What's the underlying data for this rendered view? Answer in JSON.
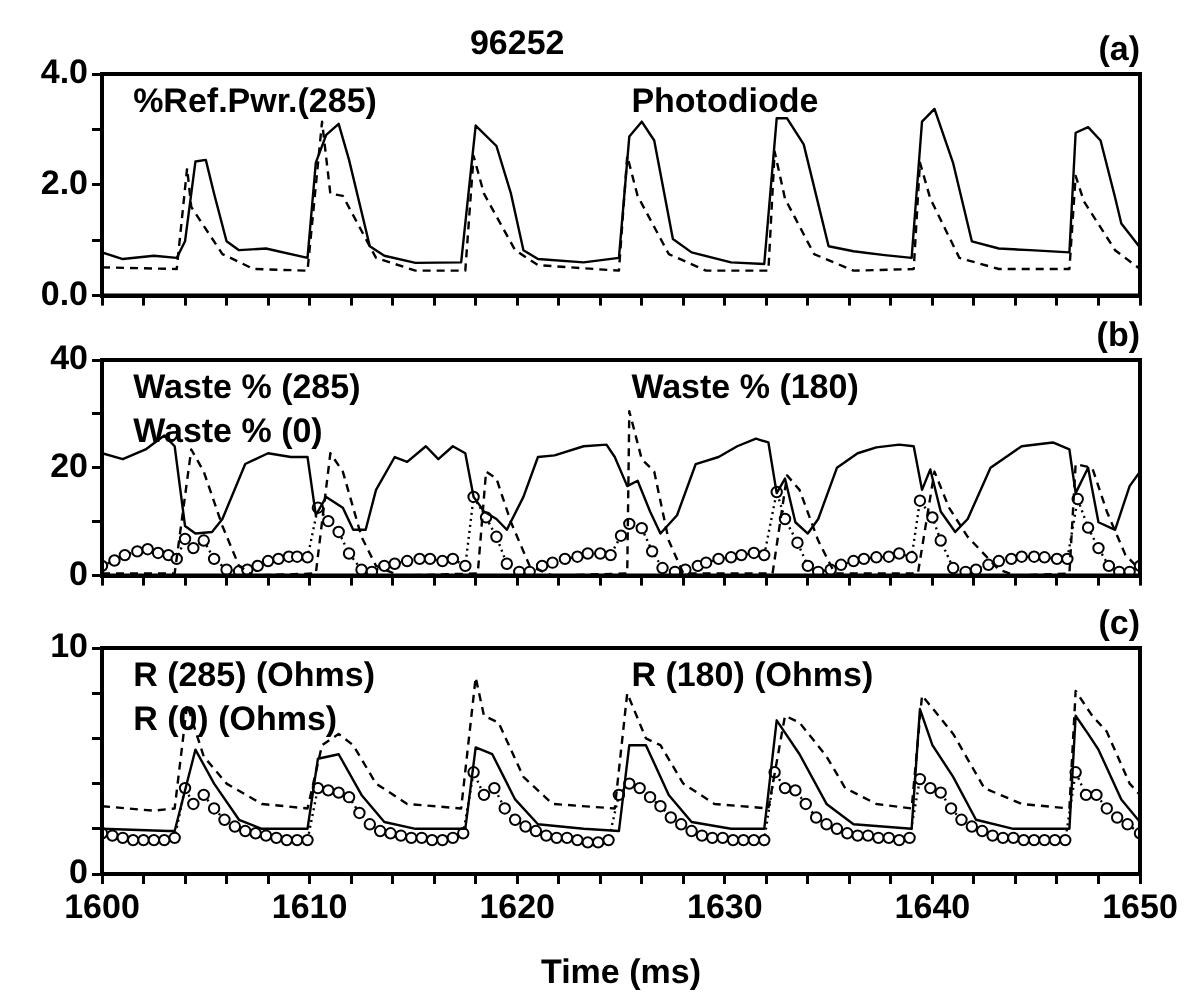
{
  "chart_data": [
    {
      "type": "line",
      "title": "96252",
      "annotations": [
        "(a)",
        "%Ref.Pwr.(285)",
        "Photodiode"
      ],
      "tick_labels": "y",
      "xlim": [
        1600,
        1650
      ],
      "xticks": [
        1600,
        {
          "value": 1602,
          "label": null
        },
        {
          "value": 1604,
          "label": null
        },
        {
          "value": 1606,
          "label": null
        },
        {
          "value": 1608,
          "label": null
        },
        1610,
        {
          "value": 1612,
          "label": null
        },
        {
          "value": 1614,
          "label": null
        },
        {
          "value": 1616,
          "label": null
        },
        {
          "value": 1618,
          "label": null
        },
        1620,
        {
          "value": 1622,
          "label": null
        },
        {
          "value": 1624,
          "label": null
        },
        {
          "value": 1626,
          "label": null
        },
        {
          "value": 1628,
          "label": null
        },
        1630,
        {
          "value": 1632,
          "label": null
        },
        {
          "value": 1634,
          "label": null
        },
        {
          "value": 1636,
          "label": null
        },
        {
          "value": 1638,
          "label": null
        },
        1640,
        {
          "value": 1642,
          "label": null
        },
        {
          "value": 1644,
          "label": null
        },
        {
          "value": 1646,
          "label": null
        },
        {
          "value": 1648,
          "label": null
        },
        1650
      ],
      "ylim": [
        0,
        4
      ],
      "yticks": [
        {
          "value": 0,
          "label": "0.0"
        },
        {
          "value": 1,
          "label": null
        },
        {
          "value": 2,
          "label": "2.0"
        },
        {
          "value": 3,
          "label": null
        },
        {
          "value": 4,
          "label": "4.0"
        }
      ],
      "series": [
        {
          "color": "#000000",
          "line_style": "solid",
          "marker": "none",
          "x": [
            1600,
            1601,
            1602.5,
            1603.6,
            1604,
            1604.5,
            1605,
            1605.4,
            1606,
            1606.6,
            1607.9,
            1609.9,
            1610.3,
            1610.8,
            1611.4,
            1611.9,
            1612.9,
            1613.6,
            1615.1,
            1617.3,
            1618,
            1619,
            1619.7,
            1620.3,
            1621,
            1623.2,
            1624.9,
            1625.4,
            1626,
            1626.6,
            1627.5,
            1628.4,
            1630.3,
            1631.9,
            1632.5,
            1633,
            1633.8,
            1635,
            1636.2,
            1637.7,
            1639,
            1639.5,
            1640.1,
            1641,
            1641.9,
            1643.2,
            1644.7,
            1646.6,
            1646.9,
            1647.5,
            1648.1,
            1648.8,
            1649.1,
            1650
          ],
          "values": [
            0.78,
            0.66,
            0.72,
            0.68,
            0.98,
            2.42,
            2.45,
            1.84,
            0.98,
            0.82,
            0.85,
            0.68,
            2.4,
            2.9,
            3.1,
            2.45,
            0.89,
            0.72,
            0.59,
            0.6,
            3.07,
            2.7,
            1.84,
            0.82,
            0.66,
            0.6,
            0.68,
            2.87,
            3.14,
            2.8,
            1.02,
            0.78,
            0.6,
            0.57,
            3.2,
            3.2,
            2.73,
            0.89,
            0.8,
            0.73,
            0.68,
            3.14,
            3.37,
            2.39,
            0.98,
            0.85,
            0.82,
            0.78,
            2.94,
            3.04,
            2.8,
            1.77,
            1.3,
            0.87
          ]
        },
        {
          "color": "#000000",
          "line_style": "dashed",
          "marker": "none",
          "x": [
            1600,
            1603.6,
            1604.1,
            1604.3,
            1605.8,
            1607.3,
            1609.9,
            1610.6,
            1611,
            1611.6,
            1613.2,
            1615.1,
            1617.5,
            1617.9,
            1618.4,
            1619.9,
            1621,
            1624.9,
            1625.3,
            1625.8,
            1627.3,
            1629.1,
            1632.1,
            1632.4,
            1632.9,
            1634.3,
            1636.2,
            1639.1,
            1639.4,
            1639.9,
            1641.3,
            1643.2,
            1646.6,
            1646.9,
            1647.3,
            1648.8,
            1650
          ],
          "values": [
            0.51,
            0.48,
            2.3,
            1.6,
            0.75,
            0.48,
            0.45,
            3.14,
            1.84,
            1.8,
            0.68,
            0.45,
            0.45,
            2.52,
            1.84,
            0.82,
            0.55,
            0.45,
            2.52,
            1.8,
            0.75,
            0.45,
            0.45,
            2.6,
            1.75,
            0.75,
            0.45,
            0.48,
            2.4,
            1.75,
            0.68,
            0.48,
            0.48,
            2.16,
            1.7,
            0.82,
            0.48
          ]
        }
      ]
    },
    {
      "type": "line",
      "annotations": [
        "(b)",
        "Waste % (285)",
        "Waste % (180)",
        "Waste % (0)"
      ],
      "tick_labels": "y",
      "xlim": [
        1600,
        1650
      ],
      "xticks": [
        1600,
        {
          "value": 1602,
          "label": null
        },
        {
          "value": 1604,
          "label": null
        },
        {
          "value": 1606,
          "label": null
        },
        {
          "value": 1608,
          "label": null
        },
        1610,
        {
          "value": 1612,
          "label": null
        },
        {
          "value": 1614,
          "label": null
        },
        {
          "value": 1616,
          "label": null
        },
        {
          "value": 1618,
          "label": null
        },
        1620,
        {
          "value": 1622,
          "label": null
        },
        {
          "value": 1624,
          "label": null
        },
        {
          "value": 1626,
          "label": null
        },
        {
          "value": 1628,
          "label": null
        },
        1630,
        {
          "value": 1632,
          "label": null
        },
        {
          "value": 1634,
          "label": null
        },
        {
          "value": 1636,
          "label": null
        },
        {
          "value": 1638,
          "label": null
        },
        1640,
        {
          "value": 1642,
          "label": null
        },
        {
          "value": 1644,
          "label": null
        },
        {
          "value": 1646,
          "label": null
        },
        {
          "value": 1648,
          "label": null
        },
        1650
      ],
      "ylim": [
        0,
        40
      ],
      "yticks": [
        0,
        {
          "value": 10,
          "label": null
        },
        20,
        {
          "value": 30,
          "label": null
        },
        40
      ],
      "series": [
        {
          "color": "#000000",
          "line_style": "solid",
          "marker": "none",
          "x": [
            1600,
            1601,
            1602.1,
            1603,
            1603.5,
            1604,
            1604.5,
            1605.3,
            1605.8,
            1606.9,
            1608,
            1609.1,
            1609.9,
            1610.3,
            1610.8,
            1611.6,
            1612.1,
            1612.7,
            1613.2,
            1614.1,
            1614.7,
            1615.6,
            1616.2,
            1616.9,
            1617.5,
            1617.9,
            1618.4,
            1619,
            1619.5,
            1620.3,
            1621,
            1621.8,
            1623.2,
            1624.3,
            1624.7,
            1625.3,
            1625.8,
            1626.4,
            1626.9,
            1627.7,
            1628.6,
            1629.7,
            1630.6,
            1631.5,
            1632.1,
            1632.5,
            1632.9,
            1633.4,
            1634,
            1634.5,
            1635.4,
            1636.4,
            1637.3,
            1638.4,
            1639.1,
            1639.5,
            1639.9,
            1640.4,
            1641.1,
            1641.7,
            1642.8,
            1644.3,
            1645.8,
            1646.6,
            1646.9,
            1647.5,
            1648,
            1648.8,
            1649.5,
            1650
          ],
          "values": [
            22.7,
            21.6,
            23.4,
            26,
            24,
            9.2,
            7.8,
            8.1,
            10.5,
            20.7,
            22.7,
            22,
            22,
            11.2,
            14.6,
            12.6,
            8.5,
            8.5,
            15.9,
            22,
            21.1,
            24,
            21.6,
            24,
            22.7,
            14.6,
            11.9,
            10.5,
            8.5,
            14.6,
            22,
            22.3,
            24,
            24.3,
            22,
            16.6,
            17.6,
            11.9,
            7.8,
            11.2,
            20.7,
            22,
            24,
            25.4,
            24.7,
            15.3,
            18,
            9.9,
            7.8,
            10.5,
            20,
            22.7,
            23.8,
            24.3,
            24,
            15.9,
            19.7,
            11.9,
            8.1,
            10.5,
            20,
            24,
            24.7,
            23.4,
            15.3,
            20,
            9.9,
            8.5,
            16.6,
            19.3
          ]
        },
        {
          "color": "#000000",
          "line_style": "dashed",
          "marker": "none",
          "x": [
            1600,
            1603.5,
            1604.3,
            1604.9,
            1605.8,
            1606.6,
            1607.3,
            1610.3,
            1611,
            1611.6,
            1612.5,
            1613.2,
            1614.3,
            1618.1,
            1618.5,
            1619,
            1619.7,
            1620.6,
            1621.7,
            1625.3,
            1625.4,
            1626,
            1626.6,
            1627.3,
            1628,
            1632.3,
            1633,
            1633.6,
            1634.5,
            1635.3,
            1639.3,
            1640.1,
            1640.8,
            1641.7,
            1643.2,
            1644,
            1646.6,
            1646.9,
            1647.7,
            1648.4,
            1649.3,
            1650
          ],
          "values": [
            0.4,
            0.4,
            23.4,
            19.3,
            9.2,
            1.8,
            0,
            0.4,
            22.7,
            19.3,
            7.2,
            1.8,
            0,
            0.4,
            19.3,
            18,
            9.9,
            1.8,
            0,
            0.4,
            30.5,
            21.6,
            19.3,
            6.5,
            0.4,
            0.4,
            18.6,
            15.9,
            6.5,
            0.4,
            0.4,
            19.3,
            12.6,
            7.2,
            1.1,
            0,
            0.4,
            20.7,
            20,
            11.9,
            3.8,
            1.1
          ]
        },
        {
          "color": "#000000",
          "line_style": "dotted",
          "marker": "circle",
          "x": [
            1600,
            1600.6,
            1601.1,
            1601.7,
            1602.2,
            1602.7,
            1603.2,
            1603.6,
            1604,
            1604.4,
            1604.9,
            1605.4,
            1606,
            1606.6,
            1607,
            1607.5,
            1608,
            1608.5,
            1609,
            1609.4,
            1609.9,
            1610.4,
            1610.9,
            1611.4,
            1611.9,
            1612.5,
            1613,
            1613.6,
            1614.1,
            1614.7,
            1615.3,
            1615.8,
            1616.4,
            1616.9,
            1617.5,
            1617.9,
            1618.5,
            1619,
            1619.5,
            1620.1,
            1620.6,
            1621.2,
            1621.7,
            1622.3,
            1622.9,
            1623.4,
            1624,
            1624.5,
            1625,
            1625.4,
            1626,
            1626.5,
            1627,
            1627.6,
            1628.1,
            1628.7,
            1629.1,
            1629.7,
            1630.3,
            1630.8,
            1631.4,
            1631.9,
            1632.5,
            1632.9,
            1633.5,
            1634,
            1634.5,
            1635.1,
            1635.6,
            1636.2,
            1636.7,
            1637.3,
            1637.9,
            1638.4,
            1639,
            1639.4,
            1640,
            1640.4,
            1641,
            1641.6,
            1642.1,
            1642.7,
            1643.2,
            1643.8,
            1644.3,
            1644.9,
            1645.4,
            1646,
            1646.5,
            1647,
            1647.5,
            1648,
            1648.5,
            1649,
            1649.5,
            1650
          ],
          "values": [
            1.8,
            2.8,
            3.8,
            4.5,
            4.9,
            4.2,
            3.8,
            3.1,
            6.8,
            5.1,
            6.5,
            3.1,
            1.1,
            0.8,
            1.1,
            1.8,
            2.7,
            3.1,
            3.5,
            3.5,
            3.4,
            12.6,
            10.1,
            8.1,
            4.1,
            1.1,
            0.7,
            1.8,
            2.2,
            2.7,
            3.1,
            3.1,
            2.7,
            3.1,
            1.8,
            14.6,
            10.8,
            7.2,
            2.2,
            0.7,
            0.7,
            1.8,
            2.4,
            3.1,
            3.5,
            4.1,
            4.1,
            3.8,
            7.4,
            9.6,
            8.8,
            4.5,
            1.4,
            0.7,
            1.1,
            1.8,
            2.4,
            3.1,
            3.4,
            3.8,
            4.2,
            3.8,
            15.5,
            10.5,
            6.1,
            1.8,
            0.7,
            1.1,
            2,
            2.7,
            3.1,
            3.4,
            3.5,
            4.1,
            3.4,
            13.9,
            10.8,
            6.5,
            1.4,
            0.7,
            1.1,
            2,
            2.7,
            3.1,
            3.5,
            3.5,
            3.4,
            3.1,
            3.1,
            14.2,
            8.9,
            5.1,
            1.8,
            0.7,
            0.7,
            1.8
          ]
        }
      ]
    },
    {
      "type": "line",
      "annotations": [
        "(c)",
        "R (285) (Ohms)",
        "R (180) (Ohms)",
        "R (0) (Ohms)"
      ],
      "xlabel": "Time (ms)",
      "xlim": [
        1600,
        1650
      ],
      "xticks": [
        1600,
        {
          "value": 1602,
          "label": null
        },
        {
          "value": 1604,
          "label": null
        },
        {
          "value": 1606,
          "label": null
        },
        {
          "value": 1608,
          "label": null
        },
        1610,
        {
          "value": 1612,
          "label": null
        },
        {
          "value": 1614,
          "label": null
        },
        {
          "value": 1616,
          "label": null
        },
        {
          "value": 1618,
          "label": null
        },
        1620,
        {
          "value": 1622,
          "label": null
        },
        {
          "value": 1624,
          "label": null
        },
        {
          "value": 1626,
          "label": null
        },
        {
          "value": 1628,
          "label": null
        },
        1630,
        {
          "value": 1632,
          "label": null
        },
        {
          "value": 1634,
          "label": null
        },
        {
          "value": 1636,
          "label": null
        },
        {
          "value": 1638,
          "label": null
        },
        1640,
        {
          "value": 1642,
          "label": null
        },
        {
          "value": 1644,
          "label": null
        },
        {
          "value": 1646,
          "label": null
        },
        {
          "value": 1648,
          "label": null
        },
        1650
      ],
      "ylim": [
        0,
        10
      ],
      "yticks": [
        0,
        {
          "value": 2,
          "label": null
        },
        {
          "value": 4,
          "label": null
        },
        {
          "value": 6,
          "label": null
        },
        {
          "value": 8,
          "label": null
        },
        10
      ],
      "series": [
        {
          "color": "#000000",
          "line_style": "solid",
          "marker": "none",
          "x": [
            1600,
            1603.2,
            1603.5,
            1604.5,
            1605.4,
            1606.6,
            1607.7,
            1609.9,
            1610.4,
            1611.4,
            1612.5,
            1613.6,
            1615.1,
            1617.5,
            1618,
            1618.8,
            1619.9,
            1621,
            1623.2,
            1624.9,
            1625.4,
            1626.2,
            1627.3,
            1628.4,
            1630.3,
            1631.9,
            1632.5,
            1633.6,
            1634.9,
            1636.2,
            1639,
            1639.4,
            1640,
            1641,
            1642.1,
            1643.9,
            1646.6,
            1646.9,
            1647.5,
            1648,
            1649.1,
            1650
          ],
          "values": [
            2,
            1.9,
            1.9,
            5.5,
            4,
            2.4,
            2,
            2,
            5.1,
            5.3,
            3.5,
            2.3,
            2,
            2,
            5.6,
            5.3,
            3.3,
            2.2,
            2,
            1.9,
            5.7,
            5.7,
            3.5,
            2.3,
            2,
            2,
            6.8,
            5.3,
            3.1,
            2.2,
            2,
            7.3,
            5.7,
            4.3,
            2.4,
            2,
            2,
            7,
            6.2,
            5.5,
            3.3,
            2.3
          ]
        },
        {
          "color": "#000000",
          "line_style": "dashed",
          "marker": "none",
          "x": [
            1600,
            1602.5,
            1603.5,
            1604.1,
            1604.9,
            1606,
            1607.7,
            1609.9,
            1610.6,
            1611.4,
            1612.1,
            1613.2,
            1614.7,
            1617.3,
            1618,
            1618.4,
            1619.1,
            1620.3,
            1621.7,
            1624.7,
            1625.3,
            1626.2,
            1626.9,
            1628,
            1629.5,
            1632.1,
            1632.9,
            1633.6,
            1634.9,
            1635.8,
            1637.3,
            1639,
            1639.5,
            1640.3,
            1641,
            1642.5,
            1644.3,
            1646.6,
            1646.9,
            1647.7,
            1648.4,
            1649.5,
            1650
          ],
          "values": [
            3,
            2.8,
            2.9,
            7.5,
            5.2,
            4,
            3.1,
            2.9,
            5.7,
            6.2,
            5.7,
            4,
            3.1,
            2.9,
            8.7,
            7,
            6.7,
            4.3,
            3.1,
            2.9,
            8,
            6,
            5.7,
            4,
            3.1,
            2.9,
            7,
            6.7,
            5.2,
            3.8,
            3.1,
            2.9,
            7.9,
            7,
            6.2,
            3.8,
            3.1,
            2.9,
            8.1,
            7,
            6.3,
            4,
            3.5
          ]
        },
        {
          "color": "#000000",
          "line_style": "dotted",
          "marker": "circle",
          "x": [
            1600,
            1600.5,
            1601,
            1601.5,
            1602,
            1602.5,
            1603,
            1603.5,
            1604,
            1604.4,
            1604.9,
            1605.4,
            1605.9,
            1606.4,
            1606.9,
            1607.4,
            1607.9,
            1608.4,
            1608.9,
            1609.4,
            1609.9,
            1610.4,
            1610.9,
            1611.4,
            1611.9,
            1612.4,
            1612.9,
            1613.4,
            1613.9,
            1614.4,
            1614.9,
            1615.4,
            1615.9,
            1616.4,
            1616.9,
            1617.4,
            1617.9,
            1618.4,
            1618.9,
            1619.4,
            1619.9,
            1620.4,
            1620.9,
            1621.4,
            1621.9,
            1622.4,
            1622.9,
            1623.4,
            1623.9,
            1624.4,
            1624.9,
            1625.4,
            1625.9,
            1626.4,
            1626.9,
            1627.4,
            1627.9,
            1628.4,
            1628.9,
            1629.4,
            1629.9,
            1630.4,
            1630.9,
            1631.4,
            1631.9,
            1632.4,
            1632.9,
            1633.4,
            1633.9,
            1634.4,
            1634.9,
            1635.4,
            1635.9,
            1636.4,
            1636.9,
            1637.4,
            1637.9,
            1638.4,
            1638.9,
            1639.4,
            1639.9,
            1640.4,
            1640.9,
            1641.4,
            1641.9,
            1642.4,
            1642.9,
            1643.4,
            1643.9,
            1644.4,
            1644.9,
            1645.4,
            1645.9,
            1646.4,
            1646.9,
            1647.4,
            1647.9,
            1648.4,
            1648.9,
            1649.4,
            1650
          ],
          "values": [
            1.8,
            1.7,
            1.6,
            1.5,
            1.5,
            1.5,
            1.5,
            1.6,
            3.8,
            3.1,
            3.5,
            2.9,
            2.4,
            2.1,
            1.9,
            1.8,
            1.7,
            1.6,
            1.5,
            1.5,
            1.5,
            3.8,
            3.7,
            3.6,
            3.4,
            2.7,
            2.2,
            1.9,
            1.8,
            1.7,
            1.6,
            1.6,
            1.5,
            1.5,
            1.6,
            1.8,
            4.5,
            3.5,
            3.8,
            2.9,
            2.4,
            2.1,
            1.9,
            1.7,
            1.6,
            1.6,
            1.5,
            1.4,
            1.4,
            1.5,
            3.5,
            4,
            3.8,
            3.4,
            3,
            2.5,
            2.2,
            1.9,
            1.7,
            1.6,
            1.6,
            1.5,
            1.5,
            1.5,
            1.5,
            4.5,
            3.8,
            3.7,
            3.1,
            2.5,
            2.2,
            2,
            1.8,
            1.7,
            1.7,
            1.6,
            1.6,
            1.5,
            1.6,
            4.2,
            3.8,
            3.6,
            2.9,
            2.4,
            2.1,
            1.9,
            1.7,
            1.6,
            1.6,
            1.5,
            1.5,
            1.5,
            1.5,
            1.5,
            4.5,
            3.5,
            3.5,
            2.9,
            2.5,
            2.2,
            1.8
          ]
        }
      ]
    }
  ]
}
